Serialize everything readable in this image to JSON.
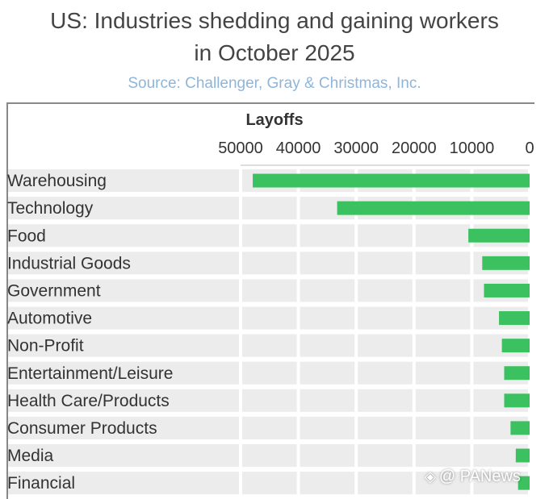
{
  "header": {
    "title_line1": "US: Industries shedding and gaining workers",
    "title_line2": "in October 2025",
    "source": "Source: Challenger, Gray & Christmas, Inc."
  },
  "watermark": {
    "text": "@ PANews",
    "icon": "diamond-logo-icon"
  },
  "colors": {
    "bar": "#3cc160",
    "band": "#ececec",
    "text": "#333333",
    "source": "#8fb5d9"
  },
  "chart_data": {
    "type": "bar",
    "orientation": "horizontal",
    "reversed_axis": true,
    "axis_title": "Layoffs",
    "axis_position": "top",
    "ticks": [
      50000,
      40000,
      30000,
      20000,
      10000,
      0
    ],
    "tick_labels": [
      "50000",
      "40000",
      "30000",
      "20000",
      "10000",
      "0"
    ],
    "xlim": [
      0,
      50000
    ],
    "categories": [
      "Warehousing",
      "Technology",
      "Food",
      "Industrial Goods",
      "Government",
      "Automotive",
      "Non-Profit",
      "Entertainment/Leisure",
      "Health Care/Products",
      "Consumer Products",
      "Media",
      "Financial"
    ],
    "series": [
      {
        "values": [
          47900,
          33300,
          10600,
          8200,
          7900,
          5300,
          4800,
          4400,
          4400,
          3300,
          2400,
          2000
        ]
      }
    ]
  }
}
